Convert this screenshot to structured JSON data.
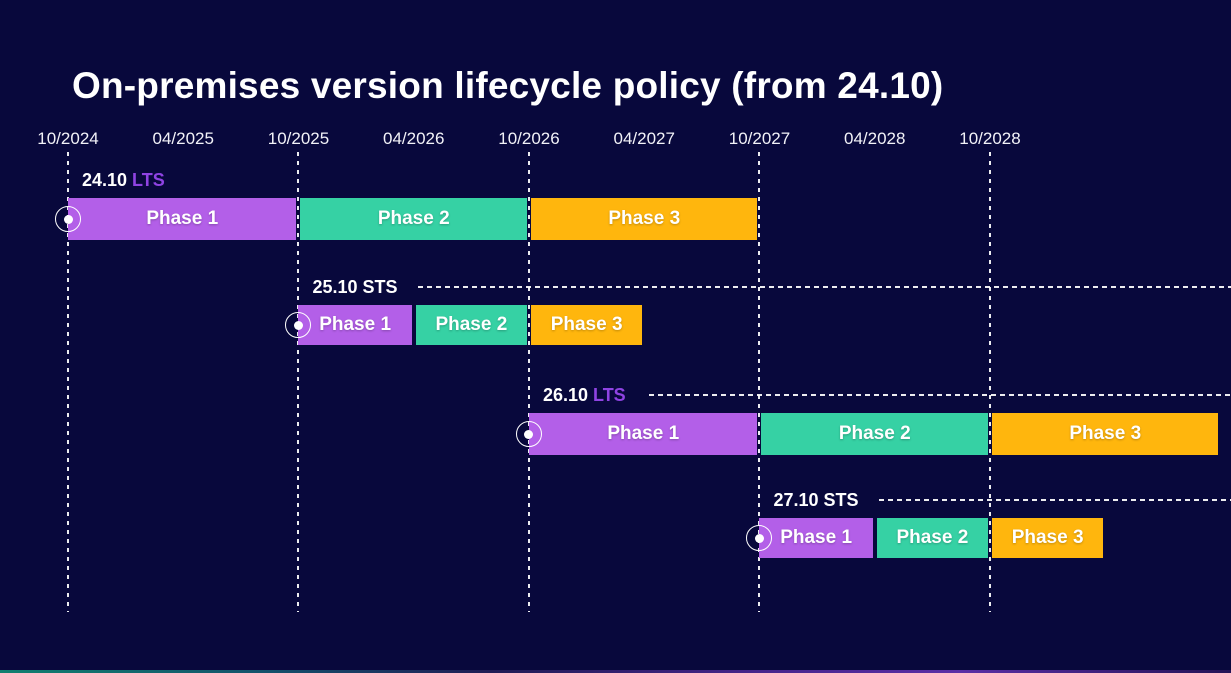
{
  "title": "On-premises version lifecycle policy (from 24.10)",
  "colors": {
    "background": "#08083C",
    "text": "#FFFFFF",
    "phases": [
      "#B35FE8",
      "#36D1A4",
      "#FFB60D"
    ],
    "channel": {
      "LTS": "#8F43E3",
      "STS": "#FFFFFF"
    },
    "gridline": "#FFFFFF"
  },
  "chart_data": {
    "type": "gantt",
    "title": "On-premises version lifecycle policy (from 24.10)",
    "time_axis": {
      "unit": "month/year",
      "ticks": [
        "10/2024",
        "04/2025",
        "10/2025",
        "04/2026",
        "10/2026",
        "04/2027",
        "10/2027",
        "04/2028",
        "10/2028"
      ],
      "gridlines": [
        "10/2024",
        "10/2025",
        "10/2026",
        "10/2027",
        "10/2028"
      ]
    },
    "legend": "none",
    "rows": [
      {
        "version": "24.10",
        "channel": "LTS",
        "leader_line": false,
        "phases": [
          {
            "name": "Phase 1",
            "start": "10/2024",
            "end": "10/2025"
          },
          {
            "name": "Phase 2",
            "start": "10/2025",
            "end": "10/2026"
          },
          {
            "name": "Phase 3",
            "start": "10/2026",
            "end": "10/2027"
          }
        ]
      },
      {
        "version": "25.10",
        "channel": "STS",
        "leader_line": true,
        "phases": [
          {
            "name": "Phase 1",
            "start": "10/2025",
            "end": "04/2026"
          },
          {
            "name": "Phase 2",
            "start": "04/2026",
            "end": "10/2026"
          },
          {
            "name": "Phase 3",
            "start": "10/2026",
            "end": "04/2027"
          }
        ]
      },
      {
        "version": "26.10",
        "channel": "LTS",
        "leader_line": true,
        "phases": [
          {
            "name": "Phase 1",
            "start": "10/2026",
            "end": "10/2027"
          },
          {
            "name": "Phase 2",
            "start": "10/2027",
            "end": "10/2028"
          },
          {
            "name": "Phase 3",
            "start": "10/2028",
            "end": "10/2029"
          }
        ]
      },
      {
        "version": "27.10",
        "channel": "STS",
        "leader_line": true,
        "phases": [
          {
            "name": "Phase 1",
            "start": "10/2027",
            "end": "04/2028"
          },
          {
            "name": "Phase 2",
            "start": "04/2028",
            "end": "10/2028"
          },
          {
            "name": "Phase 3",
            "start": "10/2028",
            "end": "04/2029"
          }
        ]
      }
    ]
  }
}
